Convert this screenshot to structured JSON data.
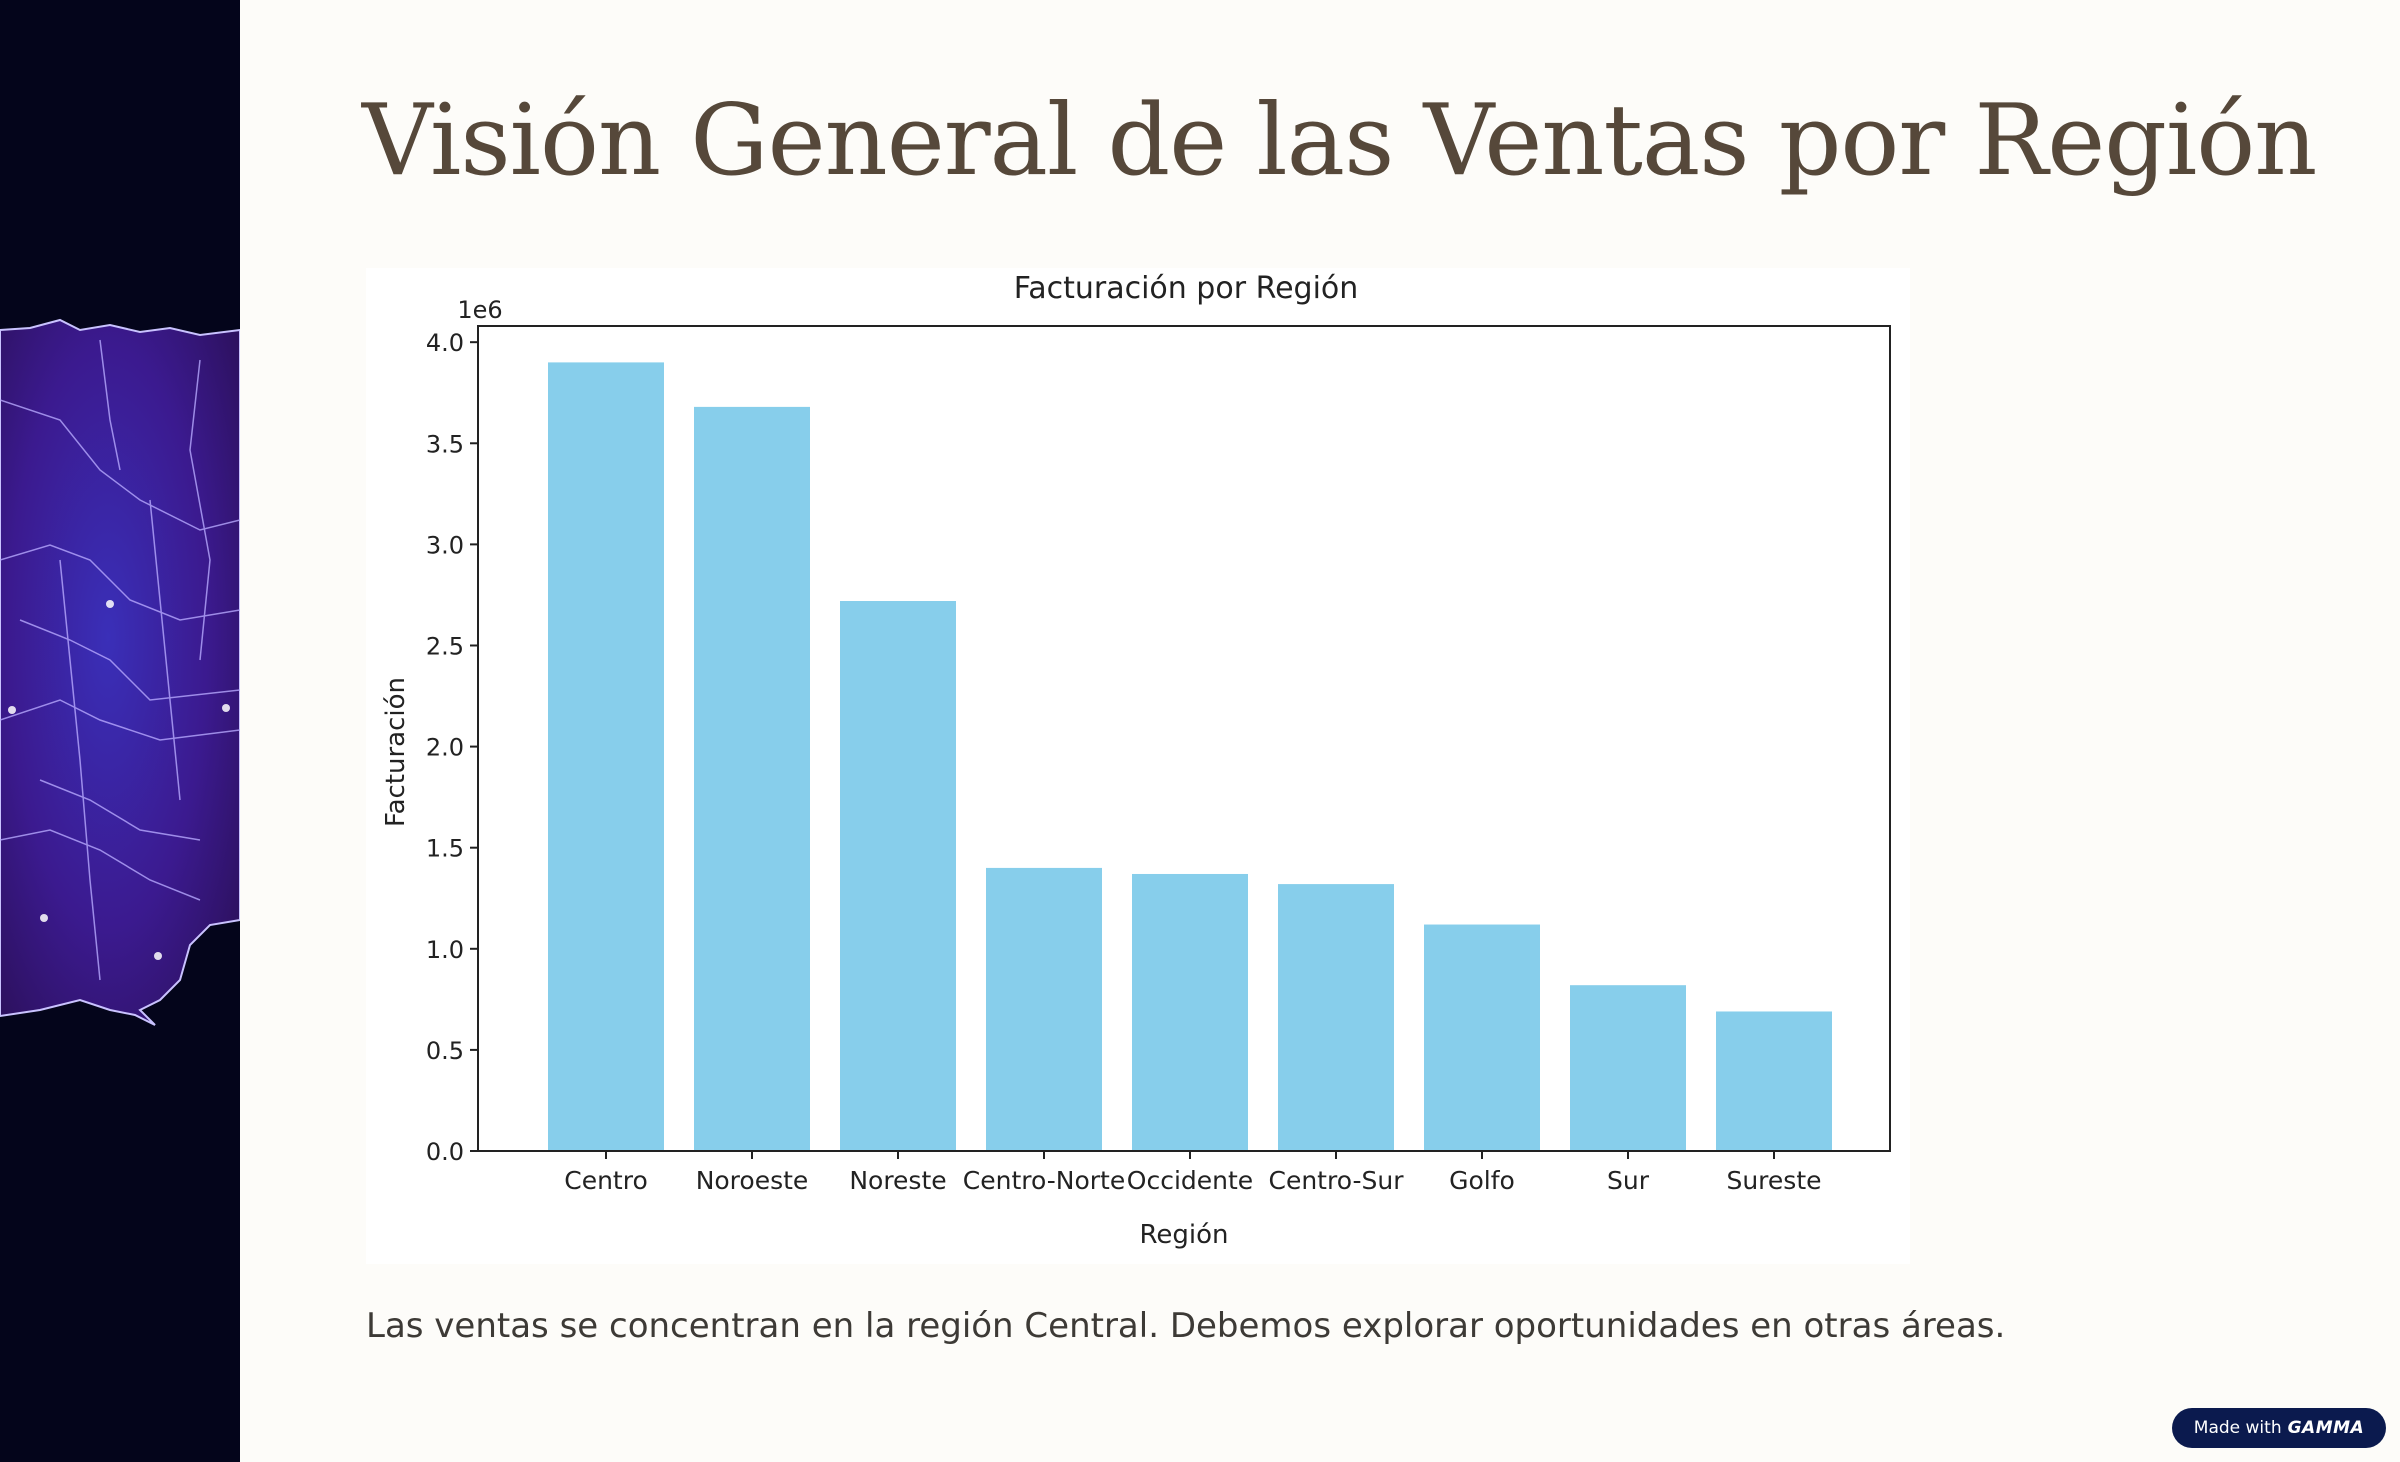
{
  "slide": {
    "title": "Visión General de las Ventas por Región",
    "caption": "Las ventas se concentran en la región Central. Debemos explorar oportunidades en otras áreas."
  },
  "badge": {
    "prefix": "Made with",
    "brand": "GAMMA"
  },
  "colors": {
    "bar": "#87ceeb",
    "title": "#56483a",
    "left_panel": "#04051b"
  },
  "chart_data": {
    "type": "bar",
    "title": "Facturación por Región",
    "xlabel": "Región",
    "ylabel": "Facturación",
    "offset_label": "1e6",
    "categories": [
      "Centro",
      "Noroeste",
      "Noreste",
      "Centro-Norte",
      "Occidente",
      "Centro-Sur",
      "Golfo",
      "Sur",
      "Sureste"
    ],
    "values": [
      3.9,
      3.68,
      2.72,
      1.4,
      1.37,
      1.32,
      1.12,
      0.82,
      0.69
    ],
    "ylim": [
      0,
      4.08
    ],
    "yticks": [
      "0.0",
      "0.5",
      "1.0",
      "1.5",
      "2.0",
      "2.5",
      "3.0",
      "3.5",
      "4.0"
    ],
    "grid": false
  }
}
